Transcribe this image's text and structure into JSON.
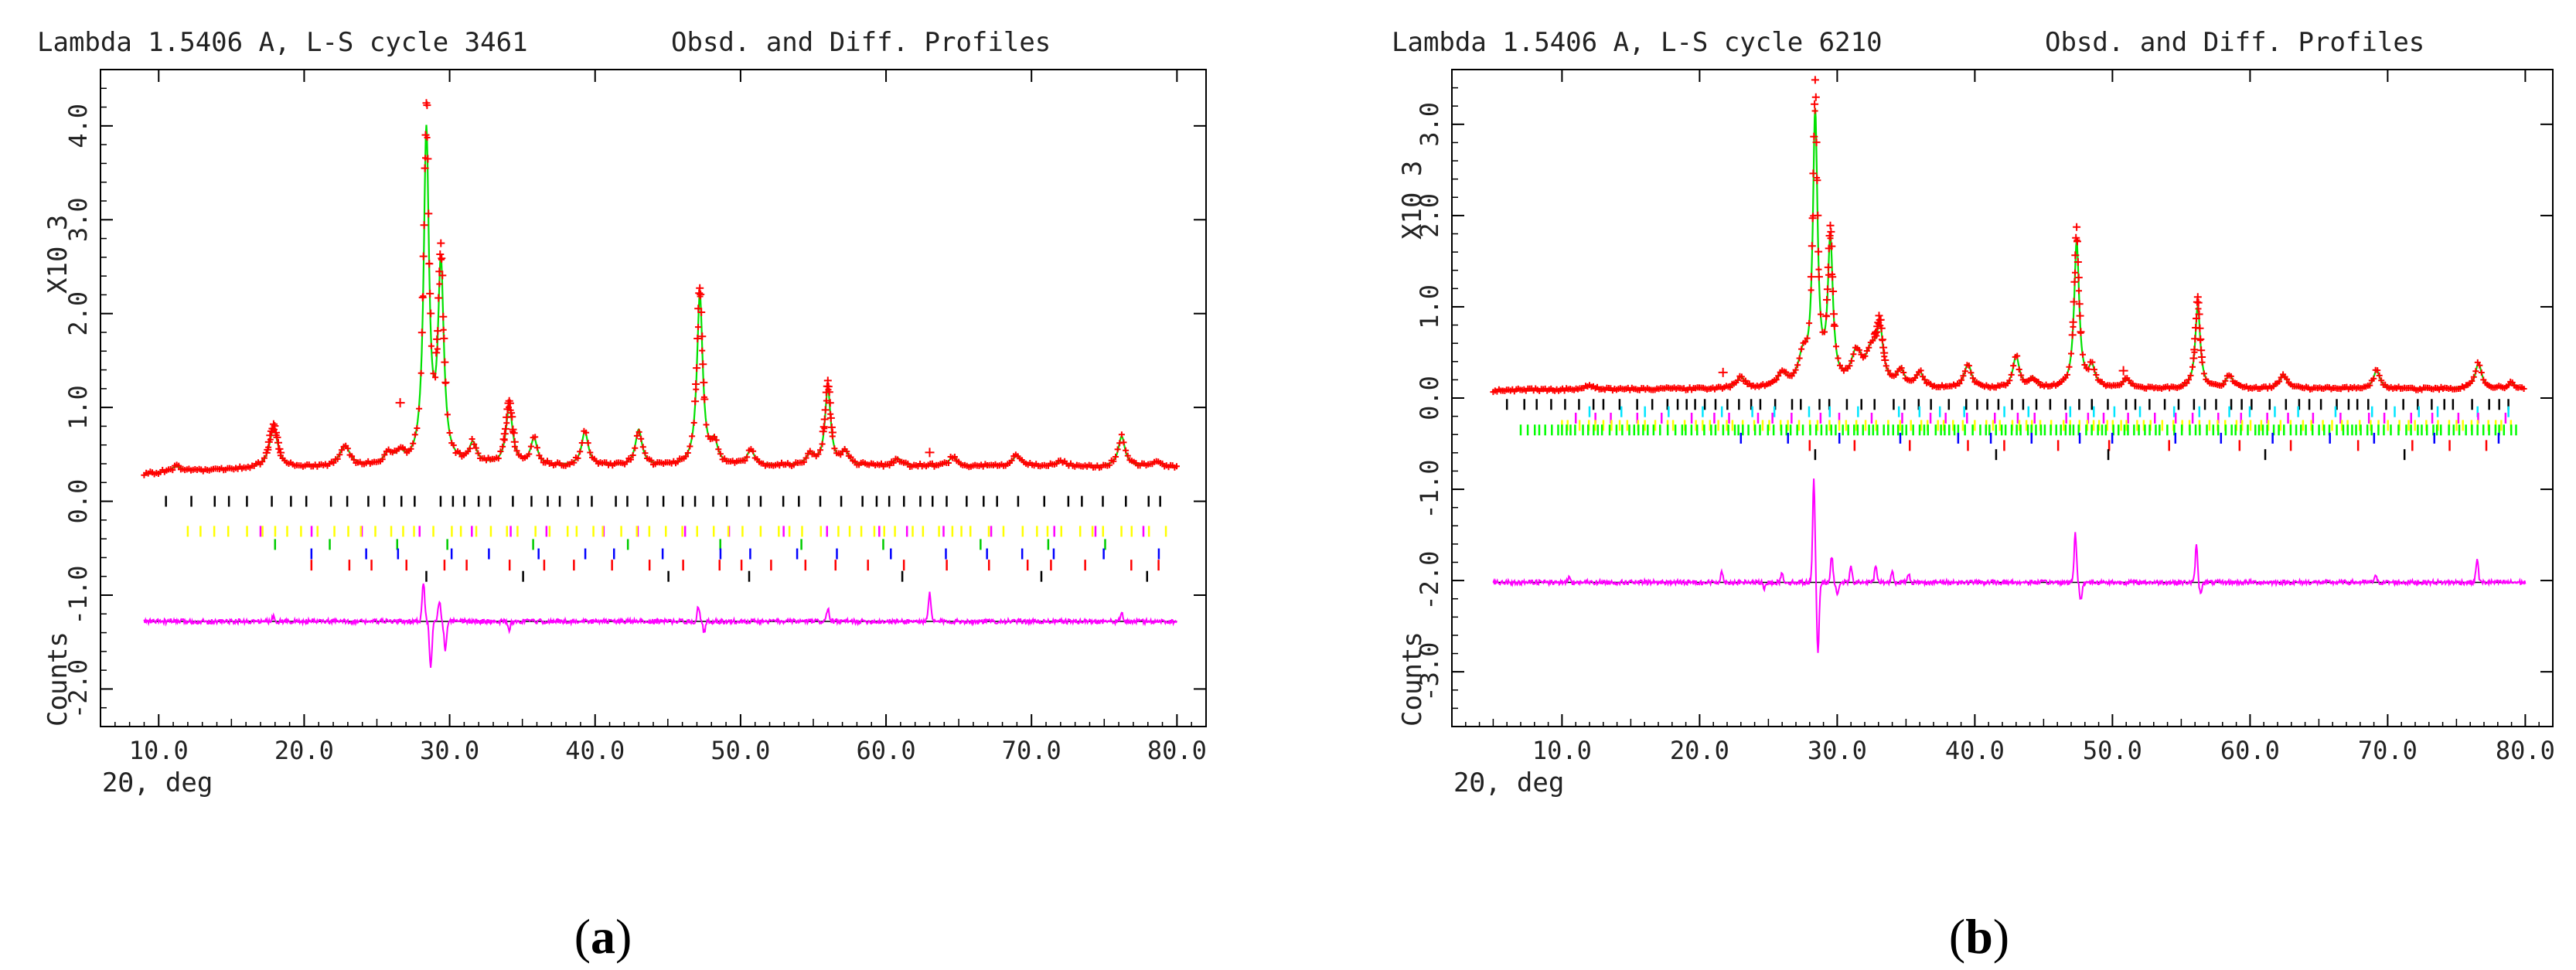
{
  "chart_data": [
    {
      "type": "line",
      "panel_label_open": "(",
      "panel_label_letter": "a",
      "panel_label_close": ")",
      "title_left": "Lambda 1.5406 A, L-S cycle 3461",
      "title_right": "Obsd. and Diff. Profiles",
      "ylabel_upper": "X10 3",
      "ylabel_lower": "Counts",
      "xlabel": "2Θ, deg",
      "xlim": [
        6.0,
        82.0
      ],
      "ylim": [
        -2.4,
        4.6
      ],
      "scan_range": [
        9.0,
        80.0
      ],
      "xticks": [
        10,
        20,
        30,
        40,
        50,
        60,
        70,
        80
      ],
      "xtick_labels": [
        "10.0",
        "20.0",
        "30.0",
        "40.0",
        "50.0",
        "60.0",
        "70.0",
        "80.0"
      ],
      "yticks": [
        -2,
        -1,
        0,
        1,
        2,
        3,
        4
      ],
      "ytick_labels": [
        "-2.0",
        "-1.0",
        "0.0",
        "1.0",
        "2.0",
        "3.0",
        "4.0"
      ],
      "background": {
        "a": 0.28,
        "b": 0.034,
        "c": -0.0008,
        "x0": 9.0
      },
      "peaks": [
        {
          "x": 11.2,
          "h": 0.05,
          "w": 0.5
        },
        {
          "x": 17.9,
          "h": 0.42,
          "w": 0.45
        },
        {
          "x": 22.8,
          "h": 0.22,
          "w": 0.55
        },
        {
          "x": 25.8,
          "h": 0.12,
          "w": 0.5
        },
        {
          "x": 26.6,
          "h": 0.1,
          "w": 0.4
        },
        {
          "x": 28.4,
          "h": 3.52,
          "w": 0.28
        },
        {
          "x": 29.4,
          "h": 2.08,
          "w": 0.3
        },
        {
          "x": 31.6,
          "h": 0.22,
          "w": 0.4
        },
        {
          "x": 34.1,
          "h": 0.62,
          "w": 0.35
        },
        {
          "x": 35.8,
          "h": 0.28,
          "w": 0.35
        },
        {
          "x": 39.3,
          "h": 0.36,
          "w": 0.35
        },
        {
          "x": 43.0,
          "h": 0.38,
          "w": 0.35
        },
        {
          "x": 47.2,
          "h": 1.82,
          "w": 0.3
        },
        {
          "x": 48.2,
          "h": 0.22,
          "w": 0.35
        },
        {
          "x": 50.7,
          "h": 0.16,
          "w": 0.4
        },
        {
          "x": 54.8,
          "h": 0.12,
          "w": 0.4
        },
        {
          "x": 56.0,
          "h": 0.82,
          "w": 0.3
        },
        {
          "x": 57.2,
          "h": 0.15,
          "w": 0.35
        },
        {
          "x": 60.8,
          "h": 0.08,
          "w": 0.4
        },
        {
          "x": 64.6,
          "h": 0.1,
          "w": 0.4
        },
        {
          "x": 69.0,
          "h": 0.12,
          "w": 0.4
        },
        {
          "x": 72.0,
          "h": 0.06,
          "w": 0.4
        },
        {
          "x": 76.2,
          "h": 0.32,
          "w": 0.35
        },
        {
          "x": 78.6,
          "h": 0.05,
          "w": 0.4
        }
      ],
      "diff_baseline": -1.28,
      "diff_features": [
        {
          "x": 17.9,
          "a": 0.06
        },
        {
          "x": 28.2,
          "a": 0.42
        },
        {
          "x": 28.7,
          "a": -0.5
        },
        {
          "x": 29.3,
          "a": 0.22
        },
        {
          "x": 29.7,
          "a": -0.32
        },
        {
          "x": 34.1,
          "a": -0.09
        },
        {
          "x": 47.1,
          "a": 0.16
        },
        {
          "x": 47.5,
          "a": -0.12
        },
        {
          "x": 56.0,
          "a": 0.14
        },
        {
          "x": 63.0,
          "a": 0.3
        },
        {
          "x": 76.2,
          "a": 0.08
        }
      ],
      "outliers": [
        {
          "x": 26.6,
          "y": 1.05
        },
        {
          "x": 63.0,
          "y": 0.52
        }
      ],
      "reflection_rows": [
        {
          "y": 0.0,
          "color": "#000000",
          "x_from": 10.5,
          "x_to": 79.5,
          "step": 1.3
        },
        {
          "y": -0.32,
          "color": "#ff00ff",
          "x_from": 17.0,
          "x_to": 79.5,
          "step": 3.1
        },
        {
          "y": -0.32,
          "color": "#ffff00",
          "x_from": 12.0,
          "x_to": 79.5,
          "step": 0.95
        },
        {
          "y": -0.46,
          "color": "#00cc00",
          "x_from": 18.0,
          "x_to": 79.5,
          "step": 5.3
        },
        {
          "y": -0.56,
          "color": "#0000ff",
          "x_from": 20.5,
          "x_to": 79.5,
          "step": 2.9
        },
        {
          "y": -0.68,
          "color": "#ff0000",
          "x_from": 20.5,
          "x_to": 79.5,
          "step": 2.4
        },
        {
          "y": -0.8,
          "color": "#000000",
          "x_from": 28.4,
          "x_to": 79.5,
          "step": 7.6
        }
      ]
    },
    {
      "type": "line",
      "panel_label_open": "(",
      "panel_label_letter": "b",
      "panel_label_close": ")",
      "title_left": "Lambda 1.5406 A, L-S cycle 6210",
      "title_right": "Obsd. and Diff. Profiles",
      "ylabel_upper": "X10 3",
      "ylabel_lower": "Counts",
      "xlabel": "2Θ, deg",
      "xlim": [
        2.0,
        82.0
      ],
      "ylim": [
        -3.6,
        3.6
      ],
      "scan_range": [
        5.0,
        80.0
      ],
      "xticks": [
        10,
        20,
        30,
        40,
        50,
        60,
        70,
        80
      ],
      "xtick_labels": [
        "10.0",
        "20.0",
        "30.0",
        "40.0",
        "50.0",
        "60.0",
        "70.0",
        "80.0"
      ],
      "yticks": [
        -3,
        -2,
        -1,
        0,
        1,
        2,
        3
      ],
      "ytick_labels": [
        "-3.0",
        "-2.0",
        "-1.0",
        "0.0",
        "1.0",
        "2.0",
        "3.0"
      ],
      "background": {
        "a": 0.08,
        "b": 0.007,
        "c": -0.00012,
        "x0": 5.0
      },
      "peaks": [
        {
          "x": 12.0,
          "h": 0.04,
          "w": 0.5
        },
        {
          "x": 23.0,
          "h": 0.12,
          "w": 0.45
        },
        {
          "x": 26.0,
          "h": 0.14,
          "w": 0.5
        },
        {
          "x": 27.5,
          "h": 0.3,
          "w": 0.5
        },
        {
          "x": 28.4,
          "h": 2.95,
          "w": 0.26
        },
        {
          "x": 29.5,
          "h": 1.55,
          "w": 0.28
        },
        {
          "x": 31.4,
          "h": 0.35,
          "w": 0.6
        },
        {
          "x": 32.5,
          "h": 0.35,
          "w": 0.6
        },
        {
          "x": 33.1,
          "h": 0.55,
          "w": 0.35
        },
        {
          "x": 34.6,
          "h": 0.18,
          "w": 0.4
        },
        {
          "x": 36.0,
          "h": 0.16,
          "w": 0.4
        },
        {
          "x": 39.5,
          "h": 0.26,
          "w": 0.4
        },
        {
          "x": 43.0,
          "h": 0.35,
          "w": 0.35
        },
        {
          "x": 44.2,
          "h": 0.1,
          "w": 0.4
        },
        {
          "x": 47.4,
          "h": 1.6,
          "w": 0.28
        },
        {
          "x": 48.5,
          "h": 0.22,
          "w": 0.35
        },
        {
          "x": 51.0,
          "h": 0.1,
          "w": 0.4
        },
        {
          "x": 56.2,
          "h": 0.9,
          "w": 0.28
        },
        {
          "x": 58.5,
          "h": 0.14,
          "w": 0.4
        },
        {
          "x": 62.4,
          "h": 0.15,
          "w": 0.4
        },
        {
          "x": 69.2,
          "h": 0.2,
          "w": 0.35
        },
        {
          "x": 76.6,
          "h": 0.28,
          "w": 0.35
        },
        {
          "x": 79.0,
          "h": 0.06,
          "w": 0.4
        }
      ],
      "diff_baseline": -2.02,
      "diff_features": [
        {
          "x": 10.5,
          "a": 0.06
        },
        {
          "x": 21.6,
          "a": 0.12
        },
        {
          "x": 24.7,
          "a": -0.08
        },
        {
          "x": 26.0,
          "a": 0.1
        },
        {
          "x": 28.3,
          "a": 1.15
        },
        {
          "x": 28.6,
          "a": -0.75
        },
        {
          "x": 29.6,
          "a": 0.28
        },
        {
          "x": 30.0,
          "a": -0.15
        },
        {
          "x": 31.0,
          "a": 0.16
        },
        {
          "x": 32.8,
          "a": 0.2
        },
        {
          "x": 34.0,
          "a": 0.12
        },
        {
          "x": 35.2,
          "a": 0.1
        },
        {
          "x": 47.3,
          "a": 0.55
        },
        {
          "x": 47.7,
          "a": -0.2
        },
        {
          "x": 56.1,
          "a": 0.4
        },
        {
          "x": 56.4,
          "a": -0.12
        },
        {
          "x": 69.1,
          "a": 0.08
        },
        {
          "x": 76.5,
          "a": 0.26
        }
      ],
      "outliers": [
        {
          "x": 50.8,
          "y": 0.3
        },
        {
          "x": 21.7,
          "y": 0.28
        }
      ],
      "reflection_rows": [
        {
          "y": -0.07,
          "color": "#000000",
          "x_from": 6.0,
          "x_to": 79.5,
          "step": 1.0
        },
        {
          "y": -0.15,
          "color": "#00e5ff",
          "x_from": 12.0,
          "x_to": 79.5,
          "step": 2.2
        },
        {
          "y": -0.22,
          "color": "#ff00ff",
          "x_from": 11.0,
          "x_to": 79.5,
          "step": 1.7
        },
        {
          "y": -0.3,
          "color": "#ffff00",
          "x_from": 10.0,
          "x_to": 79.5,
          "step": 0.65
        },
        {
          "y": -0.35,
          "color": "#00ff00",
          "x_from": 7.0,
          "x_to": 79.5,
          "step": 0.42
        },
        {
          "y": -0.44,
          "color": "#0000ff",
          "x_from": 23.0,
          "x_to": 79.5,
          "step": 3.4
        },
        {
          "y": -0.52,
          "color": "#ff0000",
          "x_from": 28.0,
          "x_to": 79.5,
          "step": 4.1
        },
        {
          "y": -0.62,
          "color": "#000000",
          "x_from": 28.4,
          "x_to": 79.5,
          "step": 9.5
        }
      ]
    }
  ],
  "colors": {
    "observed": "#ff0000",
    "calculated": "#00e000",
    "difference": "#ff00ff",
    "axis": "#000000"
  }
}
